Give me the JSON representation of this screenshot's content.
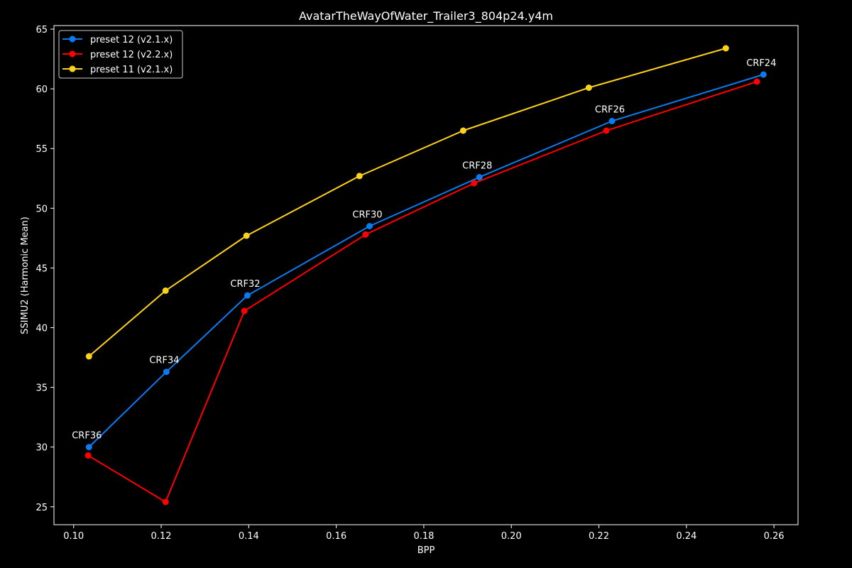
{
  "chart_data": {
    "type": "line",
    "title": "AvatarTheWayOfWater_Trailer3_804p24.y4m",
    "xlabel": "BPP",
    "ylabel": "SSIMU2 (Harmonic Mean)",
    "xlim": [
      0.0955,
      0.2655
    ],
    "ylim": [
      23.5,
      65.3
    ],
    "xticks": [
      0.1,
      0.12,
      0.14,
      0.16,
      0.18,
      0.2,
      0.22,
      0.24,
      0.26
    ],
    "xtick_labels": [
      "0.10",
      "0.12",
      "0.14",
      "0.16",
      "0.18",
      "0.20",
      "0.22",
      "0.24",
      "0.26"
    ],
    "yticks": [
      25,
      30,
      35,
      40,
      45,
      50,
      55,
      60,
      65
    ],
    "ytick_labels": [
      "25",
      "30",
      "35",
      "40",
      "45",
      "50",
      "55",
      "60",
      "65"
    ],
    "grid": false,
    "legend_position": "top-left",
    "series": [
      {
        "name": "preset 12 (v2.1.x)",
        "color": "#0a7cf0",
        "points": [
          [
            0.1035,
            30.0
          ],
          [
            0.1212,
            36.3
          ],
          [
            0.1397,
            42.7
          ],
          [
            0.1676,
            48.5
          ],
          [
            0.1927,
            52.6
          ],
          [
            0.223,
            57.3
          ],
          [
            0.2576,
            61.2
          ]
        ]
      },
      {
        "name": "preset 12 (v2.2.x)",
        "color": "#ff0000",
        "points": [
          [
            0.1033,
            29.3
          ],
          [
            0.121,
            25.4
          ],
          [
            0.139,
            41.4
          ],
          [
            0.1667,
            47.8
          ],
          [
            0.1915,
            52.1
          ],
          [
            0.2217,
            56.5
          ],
          [
            0.2561,
            60.6
          ]
        ]
      },
      {
        "name": "preset 11 (v2.1.x)",
        "color": "#ffd21a",
        "points": [
          [
            0.1035,
            37.6
          ],
          [
            0.121,
            43.1
          ],
          [
            0.1395,
            47.7
          ],
          [
            0.1653,
            52.7
          ],
          [
            0.189,
            56.5
          ],
          [
            0.2177,
            60.1
          ],
          [
            0.249,
            63.4
          ]
        ]
      }
    ],
    "annotations": [
      {
        "text": "CRF36",
        "x": 0.1035,
        "y": 30.0
      },
      {
        "text": "CRF34",
        "x": 0.1212,
        "y": 36.3
      },
      {
        "text": "CRF32",
        "x": 0.1397,
        "y": 42.7
      },
      {
        "text": "CRF30",
        "x": 0.1676,
        "y": 48.5
      },
      {
        "text": "CRF28",
        "x": 0.1927,
        "y": 52.6
      },
      {
        "text": "CRF26",
        "x": 0.223,
        "y": 57.3
      },
      {
        "text": "CRF24",
        "x": 0.2576,
        "y": 61.2
      }
    ]
  }
}
